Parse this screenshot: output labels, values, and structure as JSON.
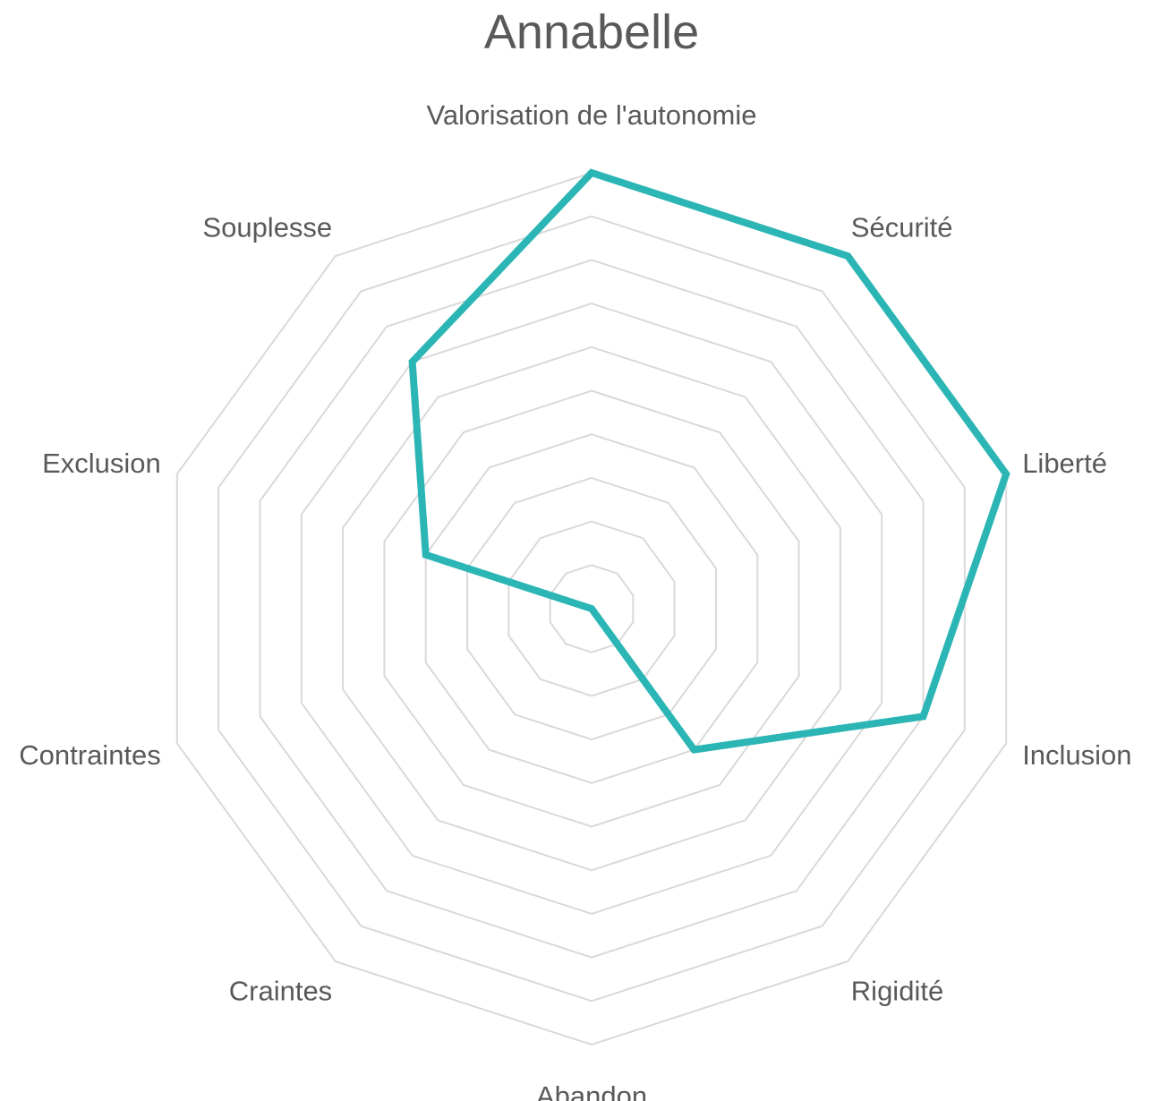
{
  "chart_data": {
    "type": "radar",
    "title": "Annabelle",
    "categories": [
      "Valorisation de l'autonomie",
      "Sécurité",
      "Liberté",
      "Inclusion",
      "Rigidité",
      "Abandon",
      "Craintes",
      "Contraintes",
      "Exclusion",
      "Souplesse"
    ],
    "rlim": [
      0,
      10
    ],
    "grid_levels": 10,
    "grid": true,
    "legend": "none",
    "series": [
      {
        "values": [
          10,
          10,
          10,
          8,
          4,
          0,
          0,
          0,
          4,
          7
        ],
        "color": "#2bb5b5"
      }
    ]
  }
}
